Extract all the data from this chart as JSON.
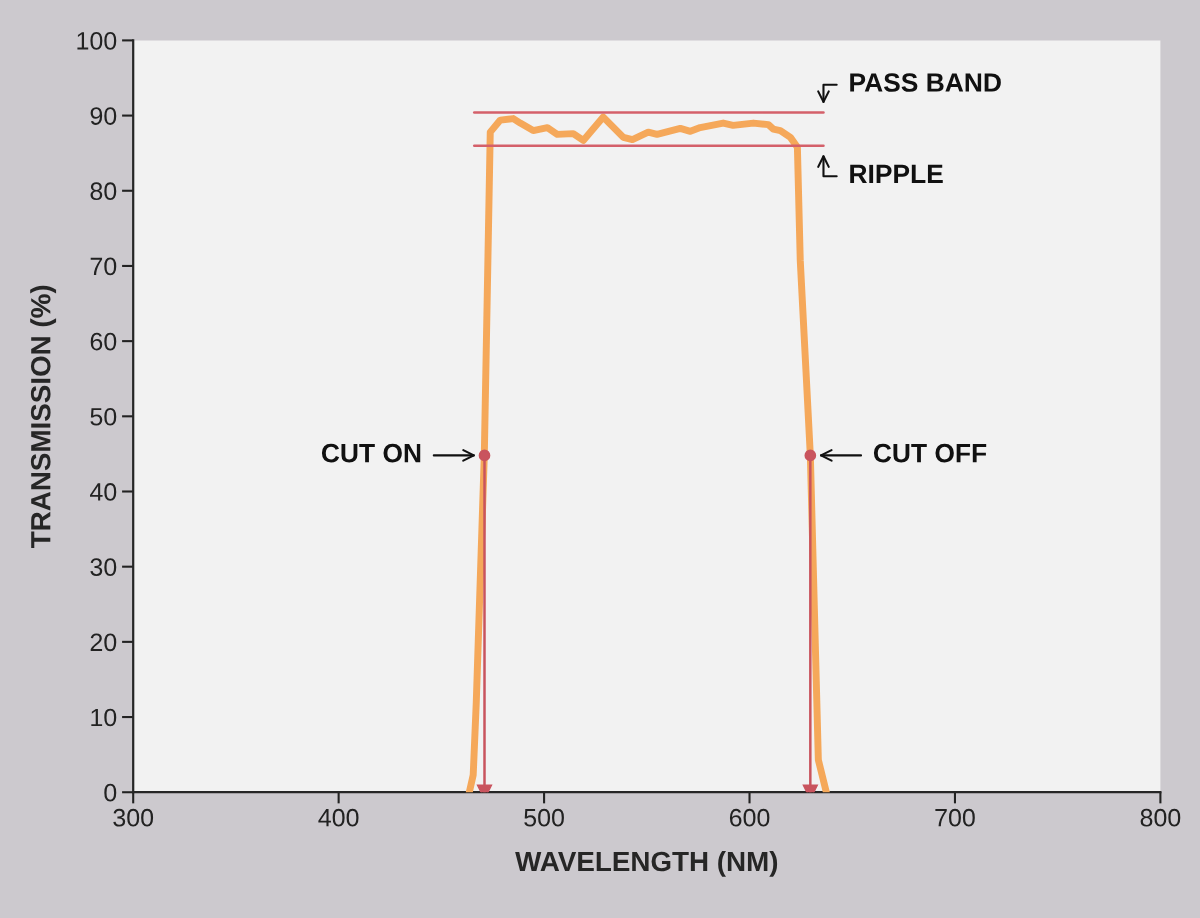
{
  "chart_data": {
    "type": "line",
    "xlabel": "WAVELENGTH (NM)",
    "ylabel": "TRANSMISSION (%)",
    "xlim": [
      300,
      800
    ],
    "xticks": [
      300,
      400,
      500,
      600,
      700,
      800
    ],
    "ylim": [
      0,
      100
    ],
    "yticks": [
      0,
      10,
      20,
      30,
      40,
      50,
      60,
      70,
      80,
      90,
      100
    ],
    "grid": false,
    "marker": "none",
    "line_style": "solid",
    "series": [
      {
        "color": "#f5a85a",
        "x": [
          463.6,
          465.5,
          467,
          470.9,
          473.8,
          478.7,
          485,
          488.4,
          494.7,
          501.6,
          506.4,
          514.2,
          519.1,
          528.8,
          538.6,
          543,
          550.7,
          555,
          566.3,
          571.2,
          576,
          587.2,
          592,
          601.9,
          609.2,
          611.6,
          615,
          619.9,
          623.3,
          624.7,
          629.6,
          633.5,
          637.4
        ],
        "values": [
          0,
          2.3,
          12,
          44.8,
          87.8,
          89.4,
          89.6,
          89,
          88,
          88.4,
          87.5,
          87.6,
          86.7,
          89.8,
          87.1,
          86.8,
          87.8,
          87.5,
          88.3,
          87.9,
          88.4,
          89,
          88.7,
          89,
          88.8,
          88.2,
          88,
          87.1,
          85.8,
          70.7,
          44.8,
          4.3,
          0
        ]
      },
      {
        "color": "#d4606a",
        "x": [
          466,
          636
        ],
        "values": [
          90.4,
          90.4
        ]
      },
      {
        "color": "#d4606a",
        "x": [
          466,
          636
        ],
        "values": [
          86,
          86
        ]
      },
      {
        "color": "#c9545e",
        "marker": "triangle",
        "x": [
          471,
          471
        ],
        "values": [
          44.8,
          0
        ]
      },
      {
        "color": "#c9545e",
        "marker": "triangle",
        "x": [
          629.6,
          629.6
        ],
        "values": [
          44.8,
          0
        ]
      },
      {
        "type": "scatter",
        "marker": "circle",
        "color": "#c9545e",
        "x": [
          471,
          629.6
        ],
        "values": [
          44.8,
          44.8
        ]
      }
    ],
    "annotations": [
      {
        "text": "PASS BAND",
        "x": 636,
        "y": 90.4
      },
      {
        "text": "RIPPLE",
        "x": 636,
        "y": 86
      },
      {
        "text": "CUT ON",
        "x": 471,
        "y": 44.8
      },
      {
        "text": "CUT OFF",
        "x": 629.6,
        "y": 44.8
      }
    ]
  }
}
